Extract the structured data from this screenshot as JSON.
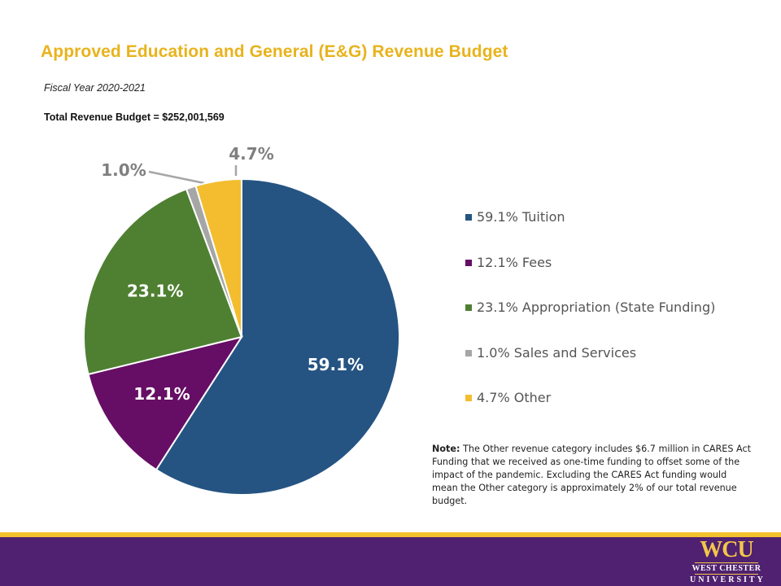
{
  "slide": {
    "title": "Approved Education and General (E&G) Revenue Budget",
    "subtitle": "Fiscal Year 2020-2021",
    "total": "Total Revenue Budget = $252,001,569"
  },
  "chart_data": {
    "type": "pie",
    "categories": [
      "Tuition",
      "Fees",
      "Appropriation (State Funding)",
      "Sales and Services",
      "Other"
    ],
    "values": [
      59.1,
      12.1,
      23.1,
      1.0,
      4.7
    ],
    "labels": [
      "59.1%",
      "12.1%",
      "23.1%",
      "1.0%",
      "4.7%"
    ],
    "legend_entries": [
      "59.1% Tuition",
      "12.1% Fees",
      "23.1% Appropriation (State Funding)",
      "1.0% Sales and Services",
      "4.7% Other"
    ],
    "colors": [
      "#255483",
      "#660e65",
      "#4f8032",
      "#a6a6a6",
      "#f3bd2f"
    ],
    "legend_placement": "right",
    "start_angle_deg": 0,
    "direction": "clockwise"
  },
  "note": {
    "label": "Note:",
    "text": " The Other revenue category includes $6.7 million in CARES Act Funding that we received as one-time funding to offset some of the impact of the pandemic. Excluding the CARES Act funding would mean the Other category is approximately 2% of our total revenue budget."
  },
  "logo": {
    "text": "WCU",
    "line1": "WEST CHESTER",
    "line2": "UNIVERSITY"
  },
  "colors": {
    "title": "#e8b31c",
    "footer": "#4f2170",
    "footer_accent": "#f2c12e"
  }
}
